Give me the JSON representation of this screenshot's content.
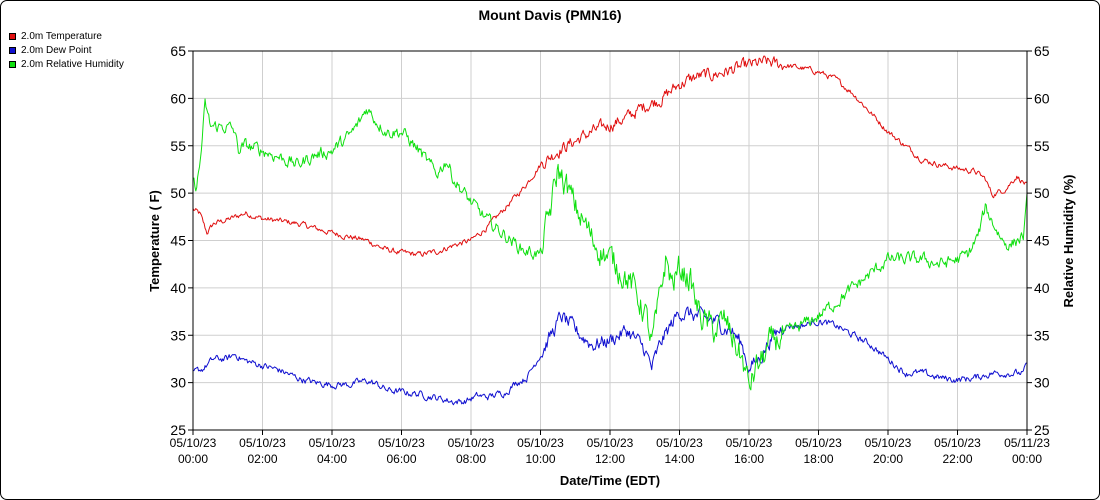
{
  "chart_data": {
    "type": "line",
    "title": "Mount Davis (PMN16)",
    "xlabel": "Date/Time (EDT)",
    "ylabel_left": "Temperature ( F)",
    "ylabel_right": "Relative Humidity (%)",
    "x_range_hours": [
      0,
      24
    ],
    "ylim_left": [
      25,
      65
    ],
    "ylim_right": [
      25,
      65
    ],
    "y_ticks": [
      25,
      30,
      35,
      40,
      45,
      50,
      55,
      60,
      65
    ],
    "x_ticks": [
      {
        "hour": 0,
        "date": "05/10/23",
        "time": "00:00"
      },
      {
        "hour": 2,
        "date": "05/10/23",
        "time": "02:00"
      },
      {
        "hour": 4,
        "date": "05/10/23",
        "time": "04:00"
      },
      {
        "hour": 6,
        "date": "05/10/23",
        "time": "06:00"
      },
      {
        "hour": 8,
        "date": "05/10/23",
        "time": "08:00"
      },
      {
        "hour": 10,
        "date": "05/10/23",
        "time": "10:00"
      },
      {
        "hour": 12,
        "date": "05/10/23",
        "time": "12:00"
      },
      {
        "hour": 14,
        "date": "05/10/23",
        "time": "14:00"
      },
      {
        "hour": 16,
        "date": "05/10/23",
        "time": "16:00"
      },
      {
        "hour": 18,
        "date": "05/10/23",
        "time": "18:00"
      },
      {
        "hour": 20,
        "date": "05/10/23",
        "time": "20:00"
      },
      {
        "hour": 22,
        "date": "05/10/23",
        "time": "22:00"
      },
      {
        "hour": 24,
        "date": "05/11/23",
        "time": "00:00"
      }
    ],
    "grid": true,
    "legend_position": "top-left",
    "series": [
      {
        "name": "2.0m Temperature",
        "color": "#e01010",
        "axis": "left",
        "noise": 0.25,
        "points": [
          [
            0,
            48.3
          ],
          [
            0.2,
            47.8
          ],
          [
            0.4,
            45.8
          ],
          [
            0.6,
            46.8
          ],
          [
            1,
            47.2
          ],
          [
            1.3,
            47.6
          ],
          [
            1.5,
            47.9
          ],
          [
            2,
            47.3
          ],
          [
            3,
            46.8
          ],
          [
            4,
            45.8
          ],
          [
            5,
            45.0
          ],
          [
            5.5,
            44.1
          ],
          [
            6,
            43.7
          ],
          [
            6.5,
            43.5
          ],
          [
            7,
            43.8
          ],
          [
            7.5,
            44.5
          ],
          [
            8,
            45.0
          ],
          [
            8.5,
            46.5
          ],
          [
            9,
            48.5
          ],
          [
            9.5,
            50.5
          ],
          [
            10,
            53.0
          ],
          [
            10.5,
            54.5
          ],
          [
            11,
            55.5
          ],
          [
            11.5,
            56.5
          ],
          [
            12,
            57.2
          ],
          [
            12.5,
            58.0
          ],
          [
            13,
            59.2
          ],
          [
            13.5,
            60.0
          ],
          [
            14,
            61.5
          ],
          [
            14.5,
            62.3
          ],
          [
            15,
            62.5
          ],
          [
            15.5,
            63.0
          ],
          [
            16,
            63.5
          ],
          [
            16.5,
            63.8
          ],
          [
            17,
            63.5
          ],
          [
            17.5,
            63.2
          ],
          [
            18,
            62.8
          ],
          [
            18.5,
            62.0
          ],
          [
            19,
            60.5
          ],
          [
            19.5,
            58.5
          ],
          [
            20,
            56.5
          ],
          [
            20.5,
            55.0
          ],
          [
            21,
            53.5
          ],
          [
            21.5,
            53.0
          ],
          [
            22,
            52.6
          ],
          [
            22.5,
            52.3
          ],
          [
            22.8,
            51.5
          ],
          [
            23,
            49.8
          ],
          [
            23.4,
            50.5
          ],
          [
            23.7,
            51.8
          ],
          [
            24,
            50.8
          ]
        ]
      },
      {
        "name": "2.0m Dew Point",
        "color": "#1010d0",
        "axis": "left",
        "noise": 0.3,
        "points": [
          [
            0,
            31.0
          ],
          [
            0.3,
            31.5
          ],
          [
            0.6,
            32.5
          ],
          [
            1,
            32.5
          ],
          [
            1.2,
            33.0
          ],
          [
            1.5,
            32.3
          ],
          [
            2,
            31.8
          ],
          [
            2.5,
            31.3
          ],
          [
            3,
            30.5
          ],
          [
            3.5,
            30.0
          ],
          [
            4,
            29.8
          ],
          [
            4.5,
            29.8
          ],
          [
            5,
            30.2
          ],
          [
            5.3,
            29.8
          ],
          [
            5.6,
            29.2
          ],
          [
            6,
            29.0
          ],
          [
            6.5,
            28.8
          ],
          [
            7,
            28.4
          ],
          [
            7.5,
            28.0
          ],
          [
            7.8,
            28.0
          ],
          [
            8.2,
            28.6
          ],
          [
            8.5,
            28.5
          ],
          [
            9,
            29.0
          ],
          [
            9.3,
            30.0
          ],
          [
            9.6,
            30.5
          ],
          [
            10,
            33.0
          ],
          [
            10.3,
            35.0
          ],
          [
            10.6,
            37.0
          ],
          [
            11,
            35.5
          ],
          [
            11.5,
            34.0
          ],
          [
            12,
            34.5
          ],
          [
            12.5,
            35.5
          ],
          [
            13,
            33.5
          ],
          [
            13.2,
            31.5
          ],
          [
            13.5,
            34.5
          ],
          [
            14,
            37.5
          ],
          [
            14.5,
            37.0
          ],
          [
            15,
            36.5
          ],
          [
            15.5,
            35.5
          ],
          [
            15.8,
            34.0
          ],
          [
            16,
            31.5
          ],
          [
            16.3,
            32.5
          ],
          [
            16.6,
            34.5
          ],
          [
            17,
            36.0
          ],
          [
            17.5,
            36.0
          ],
          [
            18,
            36.5
          ],
          [
            18.5,
            36.0
          ],
          [
            19,
            35.0
          ],
          [
            19.5,
            34.0
          ],
          [
            20,
            32.5
          ],
          [
            20.5,
            31.0
          ],
          [
            21,
            31.0
          ],
          [
            21.5,
            30.5
          ],
          [
            22,
            30.3
          ],
          [
            22.5,
            30.5
          ],
          [
            23,
            31.0
          ],
          [
            23.5,
            31.0
          ],
          [
            23.9,
            31.0
          ],
          [
            24,
            32.0
          ]
        ]
      },
      {
        "name": "2.0m Relative Humidity",
        "color": "#10e010",
        "axis": "right",
        "noise": 0.55,
        "points": [
          [
            0,
            51.0
          ],
          [
            0.1,
            50.7
          ],
          [
            0.2,
            53.0
          ],
          [
            0.35,
            59.3
          ],
          [
            0.5,
            57.0
          ],
          [
            1,
            57.0
          ],
          [
            1.2,
            56.5
          ],
          [
            1.3,
            54.5
          ],
          [
            1.5,
            55.0
          ],
          [
            2,
            54.5
          ],
          [
            2.5,
            53.8
          ],
          [
            3,
            53.0
          ],
          [
            3.5,
            54.0
          ],
          [
            4,
            54.5
          ],
          [
            4.5,
            56.0
          ],
          [
            4.8,
            57.5
          ],
          [
            5,
            59.0
          ],
          [
            5.3,
            57.5
          ],
          [
            5.6,
            56.5
          ],
          [
            6,
            56.5
          ],
          [
            6.5,
            54.5
          ],
          [
            7,
            52.0
          ],
          [
            7.3,
            53.5
          ],
          [
            7.5,
            51.5
          ],
          [
            8,
            49.0
          ],
          [
            8.5,
            47.0
          ],
          [
            9,
            45.5
          ],
          [
            9.5,
            44.0
          ],
          [
            10,
            43.5
          ],
          [
            10.3,
            48.5
          ],
          [
            10.5,
            52.5
          ],
          [
            10.7,
            51.0
          ],
          [
            11,
            48.5
          ],
          [
            11.3,
            46.5
          ],
          [
            11.5,
            45.0
          ],
          [
            12,
            43.0
          ],
          [
            12.3,
            42.0
          ],
          [
            12.6,
            40.5
          ],
          [
            12.8,
            39.0
          ],
          [
            13,
            37.5
          ],
          [
            13.2,
            34.0
          ],
          [
            13.4,
            38.0
          ],
          [
            13.6,
            43.0
          ],
          [
            13.8,
            40.5
          ],
          [
            14,
            42.0
          ],
          [
            14.3,
            41.0
          ],
          [
            14.5,
            38.0
          ],
          [
            14.7,
            36.5
          ],
          [
            15,
            35.5
          ],
          [
            15.3,
            36.5
          ],
          [
            15.5,
            35.0
          ],
          [
            15.8,
            32.5
          ],
          [
            16,
            29.5
          ],
          [
            16.2,
            31.5
          ],
          [
            16.4,
            32.5
          ],
          [
            16.6,
            34.0
          ],
          [
            17,
            35.0
          ],
          [
            17.5,
            36.0
          ],
          [
            18,
            37.0
          ],
          [
            18.5,
            38.5
          ],
          [
            19,
            40.0
          ],
          [
            19.5,
            41.5
          ],
          [
            20,
            43.0
          ],
          [
            20.5,
            43.0
          ],
          [
            21,
            43.0
          ],
          [
            21.5,
            42.5
          ],
          [
            22,
            43.0
          ],
          [
            22.3,
            43.5
          ],
          [
            22.6,
            45.5
          ],
          [
            22.8,
            48.5
          ],
          [
            23,
            47.0
          ],
          [
            23.3,
            45.0
          ],
          [
            23.5,
            44.5
          ],
          [
            23.9,
            45.5
          ],
          [
            24,
            49.0
          ]
        ]
      }
    ]
  }
}
